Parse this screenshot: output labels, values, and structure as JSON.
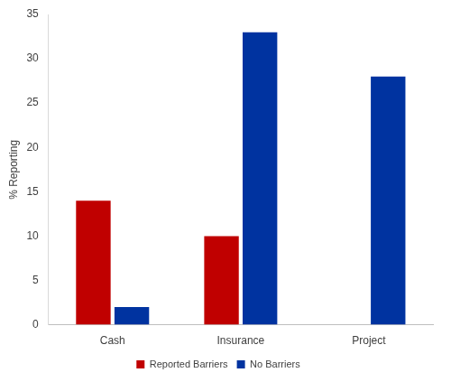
{
  "chart_data": {
    "type": "bar",
    "y_label": "% Reporting",
    "categories": [
      "Cash",
      "Insurance",
      "Project"
    ],
    "series": [
      {
        "name": "Reported Barriers",
        "color": "#c00000",
        "values": [
          14,
          10,
          0
        ]
      },
      {
        "name": "No Barriers",
        "color": "#0033a0",
        "values": [
          2,
          33,
          28
        ]
      }
    ],
    "ylim": [
      0,
      35
    ],
    "yticks": [
      0,
      5,
      10,
      15,
      20,
      25,
      30,
      35
    ],
    "grid": false,
    "legend": "bottom"
  }
}
